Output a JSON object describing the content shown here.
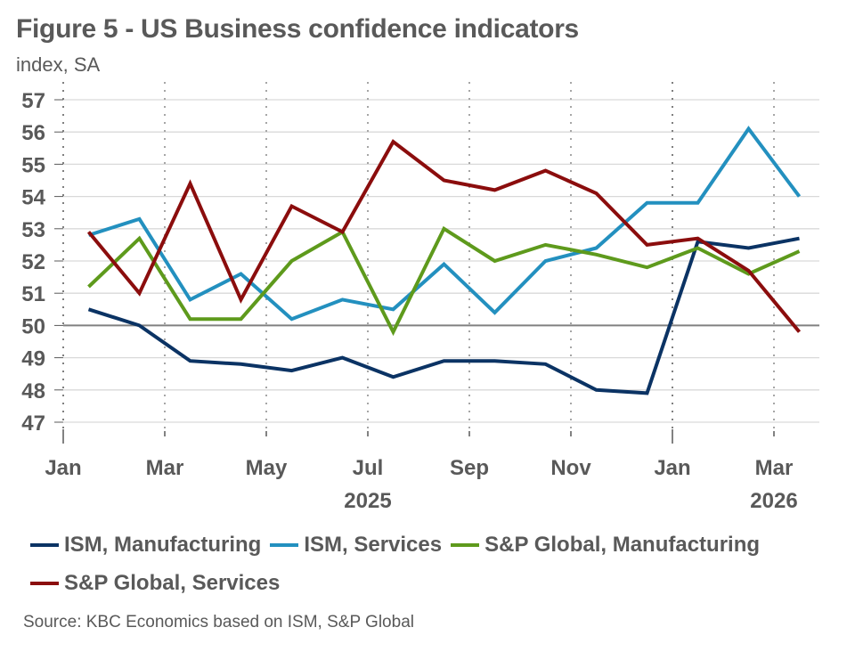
{
  "header": {
    "title": "Figure 5 - US Business confidence indicators",
    "subtitle": "index, SA"
  },
  "source": "Source: KBC Economics based on ISM, S&P Global",
  "chart_data": {
    "type": "line",
    "title": "Figure 5 - US Business confidence indicators",
    "ylabel": "index, SA",
    "xlabel": "",
    "ylim": [
      47,
      57
    ],
    "yticks": [
      47,
      48,
      49,
      50,
      51,
      52,
      53,
      54,
      55,
      56,
      57
    ],
    "reference_line": 50,
    "grid": true,
    "legend_position": "bottom",
    "x": [
      "2025-01",
      "2025-02",
      "2025-03",
      "2025-04",
      "2025-05",
      "2025-06",
      "2025-07",
      "2025-08",
      "2025-09",
      "2025-10",
      "2025-11",
      "2025-12",
      "2026-01",
      "2026-02",
      "2026-03"
    ],
    "xtick_labels": [
      {
        "label": "Jan",
        "month_index": 0
      },
      {
        "label": "Mar",
        "month_index": 2
      },
      {
        "label": "May",
        "month_index": 4
      },
      {
        "label": "Jul",
        "month_index": 6
      },
      {
        "label": "Sep",
        "month_index": 8
      },
      {
        "label": "Nov",
        "month_index": 10
      },
      {
        "label": "Jan",
        "month_index": 12
      },
      {
        "label": "Mar",
        "month_index": 14
      }
    ],
    "year_labels": [
      {
        "label": "2025",
        "month_index": 6
      },
      {
        "label": "2026",
        "month_index": 14
      }
    ],
    "series": [
      {
        "name": "ISM, Manufacturing",
        "color": "#0B3364",
        "values": [
          50.5,
          50.0,
          48.9,
          48.8,
          48.6,
          49.0,
          48.4,
          48.9,
          48.9,
          48.8,
          48.0,
          47.9,
          52.6,
          52.4,
          52.7
        ]
      },
      {
        "name": "ISM, Services",
        "color": "#2390BF",
        "values": [
          52.8,
          53.3,
          50.8,
          51.6,
          50.2,
          50.8,
          50.5,
          51.9,
          50.4,
          52.0,
          52.4,
          53.8,
          53.8,
          56.1,
          54.0
        ]
      },
      {
        "name": "S&P Global, Manufacturing",
        "color": "#5E9A1C",
        "values": [
          51.2,
          52.7,
          50.2,
          50.2,
          52.0,
          52.9,
          49.8,
          53.0,
          52.0,
          52.5,
          52.2,
          51.8,
          52.4,
          51.6,
          52.3
        ]
      },
      {
        "name": "S&P Global, Services",
        "color": "#8B0D0D",
        "values": [
          52.9,
          51.0,
          54.4,
          50.8,
          53.7,
          52.9,
          55.7,
          54.5,
          54.2,
          54.8,
          54.1,
          52.5,
          52.7,
          51.7,
          49.8
        ]
      }
    ]
  }
}
